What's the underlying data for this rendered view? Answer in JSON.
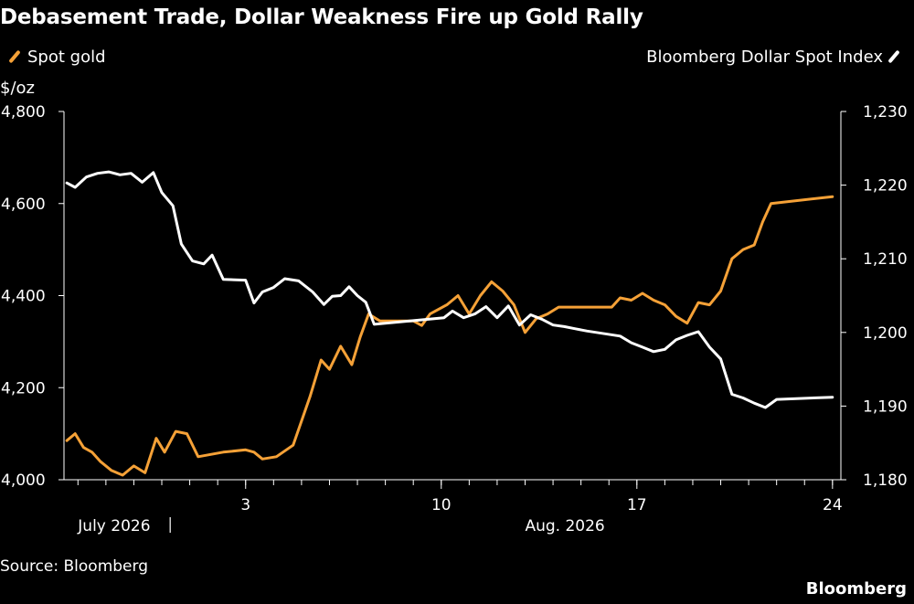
{
  "title": "Debasement Trade, Dollar Weakness Fire up Gold Rally",
  "source": "Source: Bloomberg",
  "brand": "Bloomberg",
  "colors": {
    "gold": "#f5a137",
    "dollar": "#ffffff",
    "background": "#000000"
  },
  "chart_data": {
    "type": "line",
    "left_unit": "$/oz",
    "yleft_ticks": [
      "4,000",
      "4,200",
      "4,400",
      "4,600",
      "4,800"
    ],
    "yright_ticks": [
      "1,180",
      "1,190",
      "1,200",
      "1,210",
      "1,220",
      "1,230"
    ],
    "yleft_lim": [
      4000,
      4800
    ],
    "yright_lim": [
      1180,
      1230
    ],
    "x_ticks": [
      {
        "label": "3",
        "day": 34
      },
      {
        "label": "10",
        "day": 41
      },
      {
        "label": "17",
        "day": 48
      },
      {
        "label": "24",
        "day": 55
      }
    ],
    "x_month_labels": [
      {
        "label": "July 2026",
        "day": 28
      },
      {
        "label": "Aug. 2026",
        "day": 44
      }
    ],
    "xlim": [
      27.5,
      55.3
    ],
    "series": [
      {
        "name": "Spot gold",
        "axis": "left",
        "x": [
          27.6,
          27.9,
          28.2,
          28.5,
          28.8,
          29.2,
          29.6,
          30.0,
          30.4,
          30.8,
          31.1,
          31.5,
          31.9,
          32.3,
          33.2,
          34.0,
          34.3,
          34.6,
          35.1,
          35.7,
          36.3,
          36.7,
          37.0,
          37.4,
          37.8,
          38.1,
          38.4,
          38.8,
          39.2,
          39.6,
          40.0,
          40.3,
          40.6,
          41.2,
          41.6,
          42.0,
          42.4,
          42.8,
          43.2,
          43.6,
          44.0,
          44.4,
          44.8,
          45.2,
          45.6,
          46.0,
          47.1,
          47.4,
          47.8,
          48.2,
          48.6,
          49.0,
          49.4,
          49.8,
          50.2,
          50.6,
          51.0,
          51.4,
          51.8,
          52.2,
          52.5,
          52.8,
          55.0
        ],
        "values": [
          4085,
          4100,
          4070,
          4060,
          4040,
          4020,
          4010,
          4030,
          4015,
          4090,
          4060,
          4105,
          4100,
          4050,
          4060,
          4065,
          4060,
          4045,
          4050,
          4075,
          4180,
          4260,
          4240,
          4290,
          4250,
          4310,
          4360,
          4345,
          4345,
          4345,
          4345,
          4335,
          4360,
          4380,
          4400,
          4360,
          4400,
          4430,
          4410,
          4380,
          4320,
          4350,
          4360,
          4375,
          4375,
          4375,
          4375,
          4395,
          4390,
          4405,
          4390,
          4380,
          4355,
          4340,
          4385,
          4380,
          4410,
          4480,
          4500,
          4510,
          4560,
          4600,
          4615
        ]
      },
      {
        "name": "Bloomberg Dollar Spot Index",
        "axis": "right",
        "x": [
          27.6,
          27.9,
          28.3,
          28.7,
          29.1,
          29.5,
          29.9,
          30.3,
          30.7,
          31.0,
          31.4,
          31.7,
          32.1,
          32.5,
          32.8,
          33.2,
          34.0,
          34.3,
          34.6,
          35.0,
          35.4,
          35.9,
          36.4,
          36.8,
          37.1,
          37.4,
          37.7,
          38.0,
          38.3,
          38.6,
          41.1,
          41.4,
          41.8,
          42.2,
          42.6,
          43.0,
          43.4,
          43.8,
          44.2,
          44.6,
          45.0,
          45.4,
          45.8,
          46.2,
          47.4,
          47.8,
          48.2,
          48.6,
          49.0,
          49.4,
          49.8,
          50.2,
          50.6,
          51.0,
          51.4,
          51.8,
          52.2,
          52.6,
          53.0,
          55.0
        ],
        "values": [
          1220.3,
          1219.7,
          1221.1,
          1221.6,
          1221.8,
          1221.4,
          1221.6,
          1220.4,
          1221.7,
          1219.0,
          1217.2,
          1212.0,
          1209.7,
          1209.3,
          1210.5,
          1207.2,
          1207.1,
          1204.0,
          1205.5,
          1206.1,
          1207.3,
          1207.0,
          1205.5,
          1203.8,
          1204.9,
          1205.0,
          1206.2,
          1205.0,
          1204.1,
          1201.1,
          1202.0,
          1202.9,
          1202.0,
          1202.5,
          1203.5,
          1202.0,
          1203.6,
          1201.0,
          1202.4,
          1201.8,
          1201.0,
          1200.8,
          1200.5,
          1200.2,
          1199.5,
          1198.6,
          1198.0,
          1197.4,
          1197.7,
          1199.0,
          1199.6,
          1200.1,
          1198.0,
          1196.4,
          1191.6,
          1191.1,
          1190.4,
          1189.8,
          1190.9,
          1191.2
        ]
      }
    ],
    "grid": false
  }
}
